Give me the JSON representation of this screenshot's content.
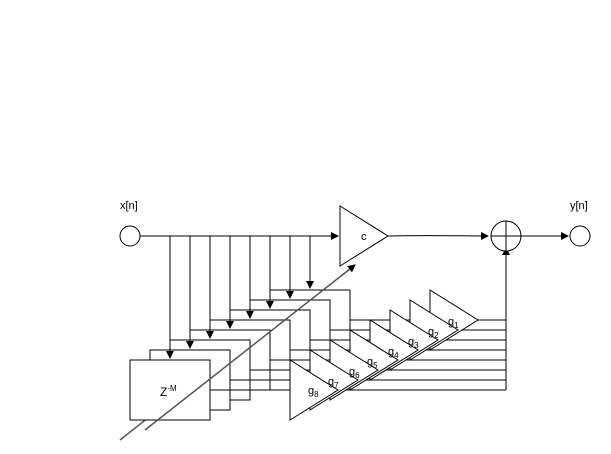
{
  "diagram": {
    "input_label": "x[n]",
    "output_label": "y[n]",
    "direct_gain_label": "c",
    "delay_label_base": "Z",
    "delay_label_exp": "-M",
    "gains": [
      {
        "base": "g",
        "sub": "1"
      },
      {
        "base": "g",
        "sub": "2"
      },
      {
        "base": "g",
        "sub": "3"
      },
      {
        "base": "g",
        "sub": "4"
      },
      {
        "base": "g",
        "sub": "5"
      },
      {
        "base": "g",
        "sub": "6"
      },
      {
        "base": "g",
        "sub": "7"
      },
      {
        "base": "g",
        "sub": "8"
      }
    ],
    "colors": {
      "stroke": "#000000",
      "fill": "#ffffff",
      "diagonal": "#555555"
    }
  }
}
